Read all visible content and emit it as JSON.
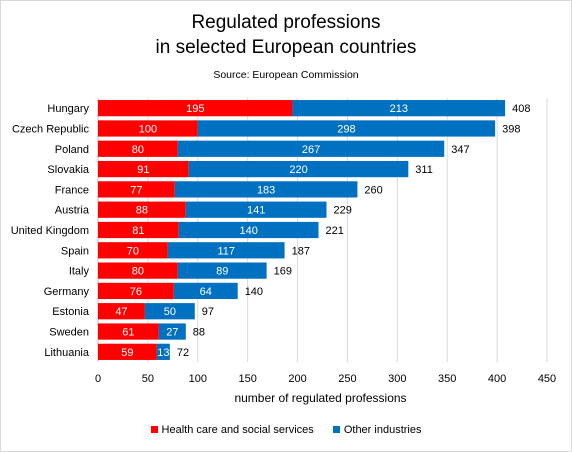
{
  "chart_data": {
    "type": "bar",
    "orientation": "horizontal",
    "stacked": true,
    "title": [
      "Regulated professions",
      "in selected European countries"
    ],
    "subtitle": "Source: European Commission",
    "categories": [
      "Hungary",
      "Czech Republic",
      "Poland",
      "Slovakia",
      "France",
      "Austria",
      "United Kingdom",
      "Spain",
      "Italy",
      "Germany",
      "Estonia",
      "Sweden",
      "Lithuania"
    ],
    "series": [
      {
        "name": "Health care and social services",
        "color": "#ff0000",
        "values": [
          195,
          100,
          80,
          91,
          77,
          88,
          81,
          70,
          80,
          76,
          47,
          61,
          59
        ]
      },
      {
        "name": "Other industries",
        "color": "#0070c0",
        "values": [
          213,
          298,
          267,
          220,
          183,
          141,
          140,
          117,
          89,
          64,
          50,
          27,
          13
        ]
      }
    ],
    "totals": [
      408,
      398,
      347,
      311,
      260,
      229,
      221,
      187,
      169,
      140,
      97,
      88,
      72
    ],
    "xlabel": "number of regulated professions",
    "ylabel": "",
    "xlim": [
      0,
      450
    ],
    "xticks": [
      0,
      50,
      100,
      150,
      200,
      250,
      300,
      350,
      400,
      450
    ],
    "grid": true,
    "legend": "bottom"
  }
}
